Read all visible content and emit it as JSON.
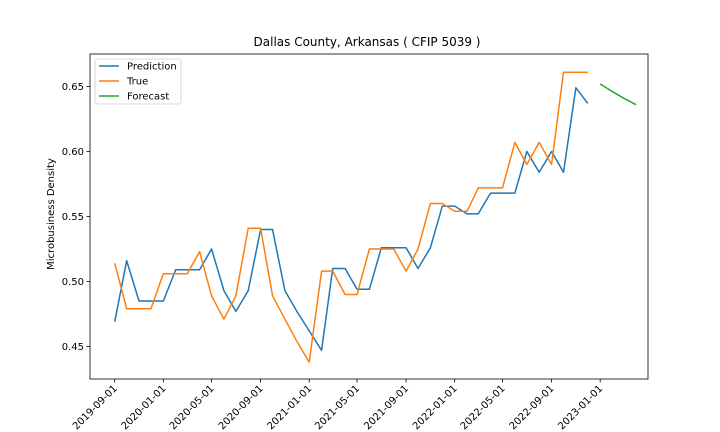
{
  "chart_data": {
    "type": "line",
    "title": "Dallas County, Arkansas ( CFIP 5039 )",
    "xlabel": "",
    "ylabel": "Microbusiness Density",
    "x_ticks": [
      "2019-09-01",
      "2020-01-01",
      "2020-05-01",
      "2020-09-01",
      "2021-01-01",
      "2021-05-01",
      "2021-09-01",
      "2022-01-01",
      "2022-05-01",
      "2022-09-01",
      "2023-01-01"
    ],
    "y_ticks": [
      "0.45",
      "0.50",
      "0.55",
      "0.60",
      "0.65"
    ],
    "xlim": [
      "2019-07-01",
      "2023-05-01"
    ],
    "ylim": [
      0.425,
      0.675
    ],
    "legend_position": "top-left",
    "grid": false,
    "series": [
      {
        "name": "Prediction",
        "color": "#1f77b4",
        "points": [
          [
            "2019-09-01",
            0.469
          ],
          [
            "2019-10-01",
            0.516
          ],
          [
            "2019-11-01",
            0.485
          ],
          [
            "2019-12-01",
            0.485
          ],
          [
            "2020-01-01",
            0.485
          ],
          [
            "2020-02-01",
            0.509
          ],
          [
            "2020-03-01",
            0.509
          ],
          [
            "2020-04-01",
            0.509
          ],
          [
            "2020-05-01",
            0.525
          ],
          [
            "2020-06-01",
            0.493
          ],
          [
            "2020-07-01",
            0.477
          ],
          [
            "2020-08-01",
            0.493
          ],
          [
            "2020-09-01",
            0.54
          ],
          [
            "2020-10-01",
            0.54
          ],
          [
            "2020-11-01",
            0.493
          ],
          [
            "2020-12-01",
            0.477
          ],
          [
            "2021-01-01",
            0.462
          ],
          [
            "2021-02-01",
            0.447
          ],
          [
            "2021-03-01",
            0.51
          ],
          [
            "2021-04-01",
            0.51
          ],
          [
            "2021-05-01",
            0.494
          ],
          [
            "2021-06-01",
            0.494
          ],
          [
            "2021-07-01",
            0.526
          ],
          [
            "2021-08-01",
            0.526
          ],
          [
            "2021-09-01",
            0.526
          ],
          [
            "2021-10-01",
            0.51
          ],
          [
            "2021-11-01",
            0.526
          ],
          [
            "2021-12-01",
            0.558
          ],
          [
            "2022-01-01",
            0.558
          ],
          [
            "2022-02-01",
            0.552
          ],
          [
            "2022-03-01",
            0.552
          ],
          [
            "2022-04-01",
            0.568
          ],
          [
            "2022-05-01",
            0.568
          ],
          [
            "2022-06-01",
            0.568
          ],
          [
            "2022-07-01",
            0.6
          ],
          [
            "2022-08-01",
            0.584
          ],
          [
            "2022-09-01",
            0.6
          ],
          [
            "2022-10-01",
            0.584
          ],
          [
            "2022-11-01",
            0.649
          ],
          [
            "2022-12-01",
            0.637
          ]
        ]
      },
      {
        "name": "True",
        "color": "#ff7f0e",
        "points": [
          [
            "2019-09-01",
            0.514
          ],
          [
            "2019-10-01",
            0.479
          ],
          [
            "2019-11-01",
            0.479
          ],
          [
            "2019-12-01",
            0.479
          ],
          [
            "2020-01-01",
            0.506
          ],
          [
            "2020-02-01",
            0.506
          ],
          [
            "2020-03-01",
            0.506
          ],
          [
            "2020-04-01",
            0.523
          ],
          [
            "2020-05-01",
            0.489
          ],
          [
            "2020-06-01",
            0.471
          ],
          [
            "2020-07-01",
            0.489
          ],
          [
            "2020-08-01",
            0.541
          ],
          [
            "2020-09-01",
            0.541
          ],
          [
            "2020-10-01",
            0.489
          ],
          [
            "2020-11-01",
            0.471
          ],
          [
            "2020-12-01",
            0.454
          ],
          [
            "2021-01-01",
            0.438
          ],
          [
            "2021-02-01",
            0.508
          ],
          [
            "2021-03-01",
            0.508
          ],
          [
            "2021-04-01",
            0.49
          ],
          [
            "2021-05-01",
            0.49
          ],
          [
            "2021-06-01",
            0.525
          ],
          [
            "2021-07-01",
            0.525
          ],
          [
            "2021-08-01",
            0.525
          ],
          [
            "2021-09-01",
            0.508
          ],
          [
            "2021-10-01",
            0.525
          ],
          [
            "2021-11-01",
            0.56
          ],
          [
            "2021-12-01",
            0.56
          ],
          [
            "2022-01-01",
            0.554
          ],
          [
            "2022-02-01",
            0.554
          ],
          [
            "2022-03-01",
            0.572
          ],
          [
            "2022-04-01",
            0.572
          ],
          [
            "2022-05-01",
            0.572
          ],
          [
            "2022-06-01",
            0.607
          ],
          [
            "2022-07-01",
            0.59
          ],
          [
            "2022-08-01",
            0.607
          ],
          [
            "2022-09-01",
            0.59
          ],
          [
            "2022-10-01",
            0.661
          ],
          [
            "2022-11-01",
            0.661
          ],
          [
            "2022-12-01",
            0.661
          ]
        ]
      },
      {
        "name": "Forecast",
        "color": "#2ca02c",
        "points": [
          [
            "2023-01-01",
            0.652
          ],
          [
            "2023-02-01",
            0.646
          ],
          [
            "2023-03-01",
            0.641
          ],
          [
            "2023-04-01",
            0.636
          ]
        ]
      }
    ]
  }
}
